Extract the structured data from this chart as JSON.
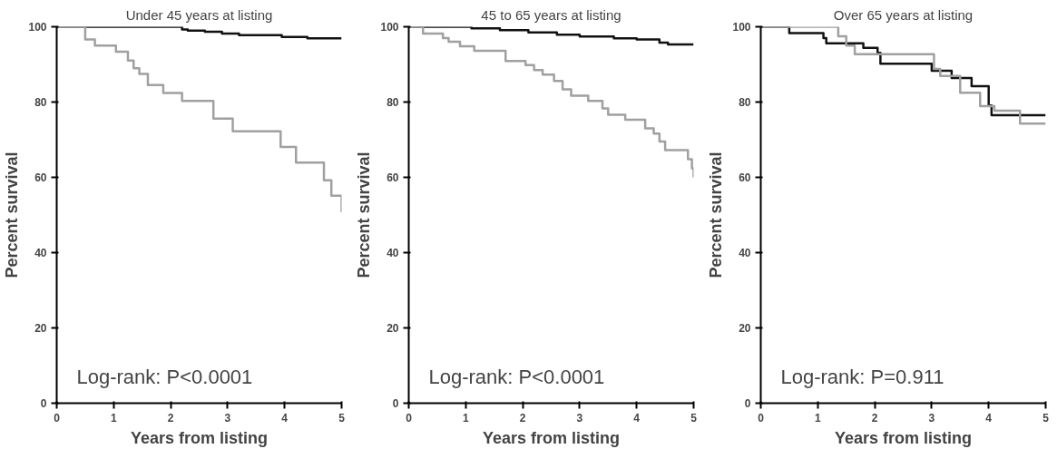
{
  "chart_data": [
    {
      "type": "step",
      "title": "Under 45 years at listing",
      "xlabel": "Years from listing",
      "ylabel": "Percent survival",
      "xlim": [
        0,
        5
      ],
      "ylim": [
        0,
        100
      ],
      "xticks": [
        0,
        1,
        2,
        3,
        4,
        5
      ],
      "yticks": [
        0,
        20,
        40,
        60,
        80,
        100
      ],
      "grid": false,
      "annotations": [
        "Log-rank: P<0.0001"
      ],
      "series": [
        {
          "color": "#111111",
          "x": [
            0,
            2.2,
            2.3,
            2.6,
            2.9,
            3.2,
            3.95,
            4.4,
            5
          ],
          "values": [
            100,
            99.3,
            99,
            98.7,
            98.2,
            97.8,
            97.3,
            96.9,
            96.9
          ]
        },
        {
          "color": "#a0a0a0",
          "x": [
            0,
            0.5,
            0.67,
            1.04,
            1.25,
            1.35,
            1.45,
            1.6,
            1.87,
            2.2,
            2.75,
            3.09,
            3.93,
            4.2,
            4.69,
            4.82,
            5
          ],
          "values": [
            100,
            96.6,
            95,
            93.4,
            91,
            89,
            87.5,
            84.5,
            82.4,
            80.3,
            75.6,
            72.2,
            68.1,
            63.9,
            59.2,
            55.1,
            50.7
          ]
        }
      ]
    },
    {
      "type": "step",
      "title": "45 to 65 years at listing",
      "xlabel": "Years from listing",
      "ylabel": "Percent survival",
      "xlim": [
        0,
        5
      ],
      "ylim": [
        0,
        100
      ],
      "xticks": [
        0,
        1,
        2,
        3,
        4,
        5
      ],
      "yticks": [
        0,
        20,
        40,
        60,
        80,
        100
      ],
      "grid": false,
      "annotations": [
        "Log-rank: P<0.0001"
      ],
      "series": [
        {
          "color": "#111111",
          "x": [
            0,
            1.1,
            1.6,
            2.1,
            2.6,
            3.0,
            3.6,
            4.0,
            4.4,
            4.55,
            5
          ],
          "values": [
            100,
            99.6,
            99.1,
            98.5,
            97.9,
            97.4,
            96.9,
            96.6,
            95.8,
            95.3,
            95.3
          ]
        },
        {
          "color": "#a0a0a0",
          "x": [
            0,
            0.25,
            0.6,
            0.7,
            0.9,
            1.15,
            1.7,
            2.05,
            2.2,
            2.35,
            2.55,
            2.7,
            2.85,
            3.15,
            3.4,
            3.5,
            3.8,
            4.15,
            4.3,
            4.4,
            4.5,
            4.9,
            4.97,
            5
          ],
          "values": [
            100,
            98.2,
            97,
            96,
            94.8,
            93.6,
            90.9,
            89.8,
            88.5,
            87.3,
            85.6,
            83.4,
            81.7,
            80.3,
            78.3,
            76.6,
            75.3,
            73,
            71.6,
            69.5,
            67.2,
            64.8,
            62.4,
            60
          ]
        }
      ]
    },
    {
      "type": "step",
      "title": "Over 65 years at listing",
      "xlabel": "Years from listing",
      "ylabel": "Percent survival",
      "xlim": [
        0,
        5
      ],
      "ylim": [
        0,
        100
      ],
      "xticks": [
        0,
        1,
        2,
        3,
        4,
        5
      ],
      "yticks": [
        0,
        20,
        40,
        60,
        80,
        100
      ],
      "grid": false,
      "annotations": [
        "Log-rank: P=0.911"
      ],
      "series": [
        {
          "color": "#111111",
          "x": [
            0,
            0.5,
            1.1,
            1.15,
            1.8,
            2.05,
            2.1,
            3.0,
            3.35,
            3.7,
            4.0,
            4.05,
            5
          ],
          "values": [
            100,
            98.3,
            97,
            95.6,
            94.4,
            93.1,
            90.2,
            88.3,
            86.4,
            84.2,
            79.1,
            76.5,
            76.5
          ]
        },
        {
          "color": "#a0a0a0",
          "x": [
            0,
            1.36,
            1.5,
            1.65,
            3.04,
            3.15,
            3.5,
            3.85,
            4.1,
            4.55,
            5
          ],
          "values": [
            100,
            97.5,
            95,
            92.7,
            88.8,
            86.9,
            82.5,
            78.9,
            77.7,
            74.3,
            74.3
          ]
        }
      ]
    }
  ]
}
